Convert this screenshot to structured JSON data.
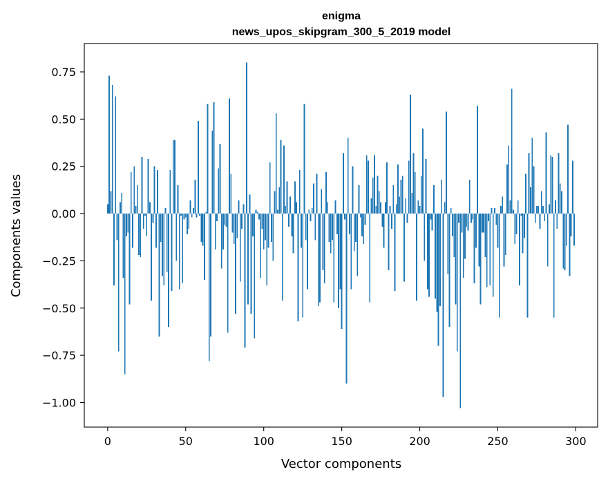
{
  "chart_data": {
    "type": "bar",
    "title": "enigma",
    "subtitle": "news_upos_skipgram_300_5_2019 model",
    "xlabel": "Vector components",
    "ylabel": "Components values",
    "xlim": [
      -15,
      314
    ],
    "ylim": [
      -1.13,
      0.9
    ],
    "xticks": [
      0,
      50,
      100,
      150,
      200,
      250,
      300
    ],
    "xtick_labels": [
      "0",
      "50",
      "100",
      "150",
      "200",
      "250",
      "300"
    ],
    "yticks": [
      0.75,
      0.5,
      0.25,
      0.0,
      -0.25,
      -0.5,
      -0.75,
      -1.0
    ],
    "ytick_labels": [
      "0.75",
      "0.50",
      "0.25",
      "0.00",
      "−0.25",
      "−0.50",
      "−0.75",
      "−1.00"
    ],
    "bar_color": "#1f77b4",
    "values": [
      0.05,
      0.73,
      0.12,
      0.68,
      -0.38,
      0.62,
      -0.14,
      -0.73,
      0.06,
      0.11,
      -0.34,
      -0.85,
      -0.12,
      -0.1,
      -0.48,
      0.22,
      -0.18,
      0.25,
      0.04,
      0.15,
      -0.22,
      -0.23,
      0.3,
      -0.08,
      -0.01,
      -0.12,
      0.29,
      0.06,
      -0.46,
      -0.05,
      0.25,
      -0.18,
      0.23,
      -0.65,
      -0.15,
      -0.33,
      -0.38,
      0.03,
      -0.31,
      -0.6,
      0.23,
      -0.41,
      0.39,
      0.39,
      -0.25,
      0.15,
      -0.4,
      -0.01,
      -0.37,
      -0.03,
      -0.02,
      -0.11,
      -0.08,
      0.07,
      -0.02,
      0.03,
      0.18,
      -0.02,
      0.49,
      -0.01,
      -0.15,
      -0.17,
      -0.35,
      0.01,
      0.58,
      -0.78,
      -0.65,
      0.44,
      0.59,
      -0.19,
      -0.04,
      0.24,
      0.37,
      -0.29,
      -0.19,
      -0.06,
      -0.07,
      -0.63,
      0.61,
      0.21,
      -0.1,
      -0.16,
      -0.53,
      -0.13,
      0.07,
      -0.36,
      -0.08,
      0.05,
      -0.71,
      0.8,
      -0.48,
      0.1,
      -0.53,
      -0.12,
      -0.66,
      0.02,
      0.01,
      -0.03,
      -0.34,
      -0.08,
      -0.19,
      -0.14,
      -0.38,
      -0.18,
      0.27,
      -0.15,
      -0.25,
      0.12,
      0.53,
      0.02,
      0.14,
      0.39,
      -0.46,
      0.36,
      0.04,
      0.17,
      -0.07,
      0.09,
      -0.12,
      -0.21,
      0.17,
      0.06,
      -0.57,
      0.23,
      -0.18,
      -0.55,
      0.58,
      -0.14,
      -0.4,
      0.02,
      -0.04,
      0.03,
      0.16,
      -0.14,
      0.21,
      -0.49,
      -0.47,
      0.13,
      -0.3,
      -0.37,
      0.22,
      0.06,
      -0.15,
      -0.21,
      -0.14,
      -0.47,
      0.07,
      -0.11,
      -0.5,
      -0.4,
      -0.61,
      0.32,
      -0.03,
      -0.9,
      0.4,
      -0.11,
      -0.4,
      0.25,
      -0.2,
      -0.15,
      -0.33,
      0.15,
      -0.02,
      -0.12,
      -0.16,
      -0.06,
      0.31,
      0.28,
      -0.47,
      0.08,
      0.19,
      0.31,
      0.04,
      0.2,
      0.12,
      0.06,
      -0.07,
      -0.18,
      0.06,
      0.27,
      -0.3,
      0.04,
      -0.08,
      0.15,
      -0.41,
      0.05,
      0.26,
      0.09,
      0.18,
      0.2,
      -0.36,
      0.08,
      -0.05,
      0.28,
      0.63,
      0.11,
      0.32,
      0.22,
      -0.46,
      0.07,
      0.04,
      0.2,
      0.45,
      -0.25,
      0.29,
      -0.4,
      -0.44,
      -0.03,
      -0.09,
      0.15,
      -0.45,
      -0.52,
      -0.7,
      -0.49,
      0.18,
      -0.97,
      0.06,
      0.54,
      -0.32,
      -0.6,
      0.03,
      -0.12,
      -0.23,
      -0.48,
      -0.73,
      -0.05,
      -1.03,
      -0.1,
      -0.34,
      -0.24,
      -0.07,
      -0.09,
      0.18,
      -0.05,
      -0.03,
      -0.37,
      -0.18,
      0.57,
      -0.28,
      -0.48,
      -0.1,
      -0.1,
      -0.23,
      -0.39,
      -0.04,
      -0.38,
      0.03,
      -0.44,
      0.03,
      -0.06,
      -0.18,
      -0.55,
      0.04,
      0.09,
      -0.28,
      -0.22,
      0.26,
      0.36,
      0.07,
      0.66,
      0.02,
      -0.16,
      -0.11,
      0.07,
      -0.38,
      -0.01,
      -0.21,
      -0.13,
      0.21,
      -0.55,
      0.32,
      0.14,
      0.4,
      0.25,
      -0.05,
      0.04,
      0.04,
      -0.08,
      0.12,
      0.04,
      -0.04,
      0.43,
      -0.28,
      0.05,
      0.31,
      0.3,
      -0.55,
      0.07,
      -0.08,
      0.32,
      0.16,
      0.12,
      -0.29,
      -0.3,
      -0.17,
      0.47,
      -0.33,
      -0.12,
      0.28,
      -0.17
    ]
  }
}
